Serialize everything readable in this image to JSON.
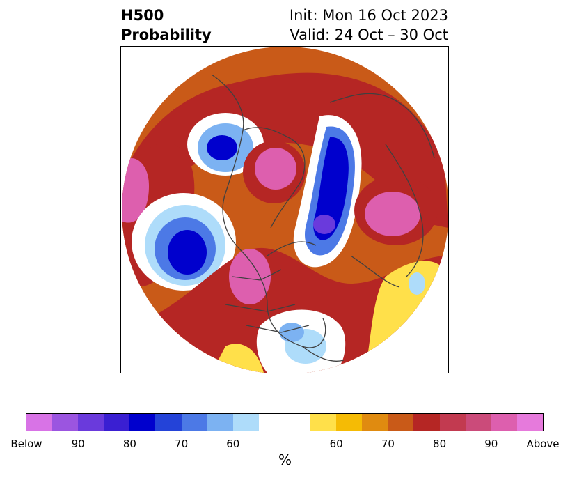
{
  "header": {
    "left_line1": "H500",
    "left_line2": "Probability",
    "right_line1": "Init: Mon 16 Oct 2023",
    "right_line2": "Valid: 24 Oct – 30 Oct"
  },
  "colorbar": {
    "colors": [
      "#d873e6",
      "#9b55e0",
      "#6a3adc",
      "#3a1fd2",
      "#0000cd",
      "#2443d8",
      "#4c79e6",
      "#7cb2f2",
      "#aedcfa",
      "#ffffff",
      "#ffffff",
      "#ffe04a",
      "#f5bb05",
      "#e08b10",
      "#c95a18",
      "#b52624",
      "#c23a50",
      "#cb4b7a",
      "#dd5fae",
      "#e67adc"
    ],
    "tick_labels": [
      "Below",
      "90",
      "80",
      "70",
      "60",
      "60",
      "70",
      "80",
      "90",
      "Above"
    ],
    "unit": "%"
  },
  "map": {
    "projection": "polar stereographic, north pole",
    "palette": {
      "below_strong": "#0000cd",
      "below_mid": "#4c79e6",
      "below_light": "#aedcfa",
      "above_light": "#ffe04a",
      "above_mid": "#e08b10",
      "above_strong": "#b52624",
      "above_max": "#dd5fae"
    }
  }
}
